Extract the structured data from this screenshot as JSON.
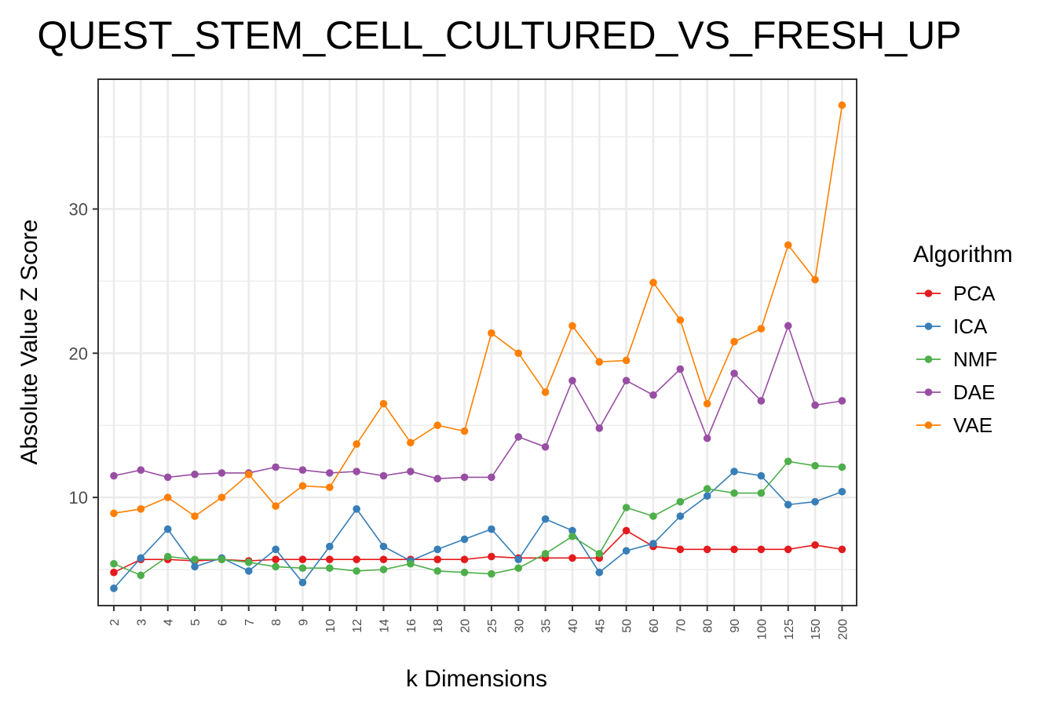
{
  "chart_data": {
    "type": "line",
    "title": "QUEST_STEM_CELL_CULTURED_VS_FRESH_UP",
    "xlabel": "k Dimensions",
    "ylabel": "Absolute Value Z Score",
    "categories": [
      "2",
      "3",
      "4",
      "5",
      "6",
      "7",
      "8",
      "9",
      "10",
      "12",
      "14",
      "16",
      "18",
      "20",
      "25",
      "30",
      "35",
      "40",
      "45",
      "50",
      "60",
      "70",
      "80",
      "90",
      "100",
      "125",
      "150",
      "200"
    ],
    "yticks": [
      10,
      20,
      30
    ],
    "ylim": [
      2.5,
      39
    ],
    "grid": true,
    "legend": {
      "title": "Algorithm",
      "position": "right"
    },
    "series": [
      {
        "name": "PCA",
        "color": "#e41a1c",
        "values": [
          4.8,
          5.7,
          5.7,
          5.6,
          5.7,
          5.6,
          5.7,
          5.7,
          5.7,
          5.7,
          5.7,
          5.7,
          5.7,
          5.7,
          5.9,
          5.8,
          5.8,
          5.8,
          5.8,
          7.7,
          6.6,
          6.4,
          6.4,
          6.4,
          6.4,
          6.4,
          6.7,
          6.4
        ]
      },
      {
        "name": "ICA",
        "color": "#377eb8",
        "values": [
          3.7,
          5.8,
          7.8,
          5.2,
          5.8,
          4.9,
          6.4,
          4.1,
          6.6,
          9.2,
          6.6,
          5.6,
          6.4,
          7.1,
          7.8,
          5.7,
          8.5,
          7.7,
          4.8,
          6.3,
          6.8,
          8.7,
          10.1,
          11.8,
          11.5,
          9.5,
          9.7,
          10.4
        ]
      },
      {
        "name": "NMF",
        "color": "#4daf4a",
        "values": [
          5.4,
          4.6,
          5.9,
          5.7,
          5.7,
          5.5,
          5.2,
          5.1,
          5.1,
          4.9,
          5.0,
          5.4,
          4.9,
          4.8,
          4.7,
          5.1,
          6.1,
          7.3,
          6.1,
          9.3,
          8.7,
          9.7,
          10.6,
          10.3,
          10.3,
          12.5,
          12.2,
          12.1
        ]
      },
      {
        "name": "DAE",
        "color": "#984ea3",
        "values": [
          11.5,
          11.9,
          11.4,
          11.6,
          11.7,
          11.7,
          12.1,
          11.9,
          11.7,
          11.8,
          11.5,
          11.8,
          11.3,
          11.4,
          11.4,
          14.2,
          13.5,
          18.1,
          14.8,
          18.1,
          17.1,
          18.9,
          14.1,
          18.6,
          16.7,
          21.9,
          16.4,
          16.7
        ]
      },
      {
        "name": "VAE",
        "color": "#ff7f00",
        "values": [
          8.9,
          9.2,
          10.0,
          8.7,
          10.0,
          11.6,
          9.4,
          10.8,
          10.7,
          13.7,
          16.5,
          13.8,
          15.0,
          14.6,
          21.4,
          20.0,
          17.3,
          21.9,
          19.4,
          19.5,
          24.9,
          22.3,
          16.5,
          20.8,
          21.7,
          27.5,
          25.1,
          37.2
        ]
      }
    ]
  }
}
